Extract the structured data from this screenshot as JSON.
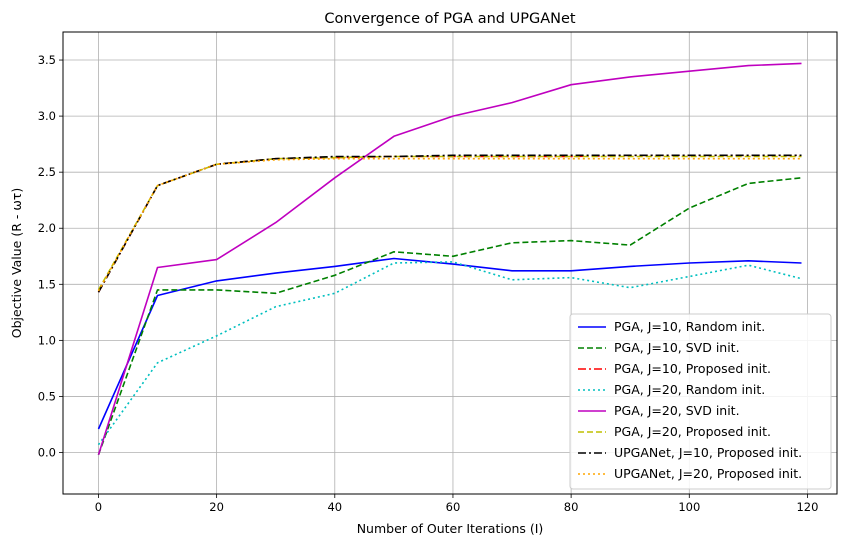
{
  "chart_data": {
    "type": "line",
    "title": "Convergence of PGA and UPGANet",
    "xlabel": "Number of Outer Iterations (I)",
    "ylabel": "Objective Value (R - ωτ)",
    "xlim": [
      -6,
      125
    ],
    "ylim": [
      -0.37,
      3.75
    ],
    "xticks": [
      "0",
      "20",
      "40",
      "60",
      "80",
      "100",
      "120"
    ],
    "yticks": [
      "0.0",
      "0.5",
      "1.0",
      "1.5",
      "2.0",
      "2.5",
      "3.0",
      "3.5"
    ],
    "grid": true,
    "legend_position": "lower-right",
    "x": [
      0,
      10,
      20,
      30,
      40,
      50,
      60,
      70,
      80,
      90,
      100,
      110,
      119
    ],
    "series": [
      {
        "name": "PGA, J=10, Random init.",
        "color": "#0000ff",
        "dash": "solid",
        "values": [
          0.21,
          1.4,
          1.53,
          1.6,
          1.66,
          1.73,
          1.68,
          1.62,
          1.62,
          1.66,
          1.69,
          1.71,
          1.69
        ]
      },
      {
        "name": "PGA, J=10, SVD init.",
        "color": "#008000",
        "dash": "dashed",
        "values": [
          -0.02,
          1.45,
          1.45,
          1.42,
          1.58,
          1.79,
          1.75,
          1.87,
          1.89,
          1.85,
          2.18,
          2.4,
          2.45
        ]
      },
      {
        "name": "PGA, J=10, Proposed init.",
        "color": "#ff0000",
        "dash": "dashdot",
        "values": [
          1.43,
          2.38,
          2.57,
          2.62,
          2.63,
          2.64,
          2.64,
          2.64,
          2.64,
          2.65,
          2.65,
          2.65,
          2.65
        ]
      },
      {
        "name": "PGA, J=20, Random init.",
        "color": "#00bfbf",
        "dash": "dotted",
        "values": [
          0.07,
          0.8,
          1.04,
          1.3,
          1.42,
          1.69,
          1.7,
          1.54,
          1.56,
          1.47,
          1.57,
          1.67,
          1.55
        ]
      },
      {
        "name": "PGA, J=20, SVD init.",
        "color": "#bf00bf",
        "dash": "solid",
        "values": [
          -0.02,
          1.65,
          1.72,
          2.05,
          2.45,
          2.82,
          3.0,
          3.12,
          3.28,
          3.35,
          3.4,
          3.45,
          3.47
        ]
      },
      {
        "name": "PGA, J=20, Proposed init.",
        "color": "#bfbf00",
        "dash": "dashed",
        "values": [
          1.45,
          2.38,
          2.57,
          2.62,
          2.63,
          2.64,
          2.64,
          2.64,
          2.64,
          2.64,
          2.64,
          2.64,
          2.64
        ]
      },
      {
        "name": "UPGANet, J=10, Proposed init.",
        "color": "#000000",
        "dash": "dashdot",
        "values": [
          1.43,
          2.38,
          2.57,
          2.62,
          2.64,
          2.64,
          2.65,
          2.65,
          2.65,
          2.65,
          2.65,
          2.65,
          2.65
        ]
      },
      {
        "name": "UPGANet, J=20, Proposed init.",
        "color": "#ffa500",
        "dash": "dotted",
        "values": [
          1.44,
          2.38,
          2.57,
          2.61,
          2.62,
          2.62,
          2.62,
          2.62,
          2.62,
          2.62,
          2.62,
          2.62,
          2.62
        ]
      }
    ]
  }
}
